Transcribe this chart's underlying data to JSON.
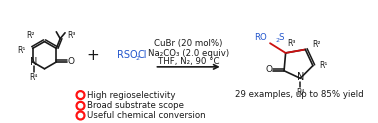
{
  "bg_color": "#ffffff",
  "conditions_line1": "CuBr (20 mol%)",
  "conditions_line2": "Na₂CO₃ (2.0 equiv)",
  "conditions_line3": "THF, N₂, 90 °C",
  "yield_text": "29 examples, up to 85% yield",
  "bullet1": "High regioselectivity",
  "bullet2": "Broad substrate scope",
  "bullet3": "Useful chemical conversion",
  "reagent_color": "#2255cc",
  "product_so2_color": "#2255cc",
  "bullet_fill": "#ff1111",
  "text_color": "#1a1a1a",
  "arrow_color": "#1a1a1a",
  "bond_color": "#1a1a1a",
  "red_bond_color": "#cc1111",
  "font_size": 7.0,
  "small_font": 6.2,
  "sub_font": 5.5
}
